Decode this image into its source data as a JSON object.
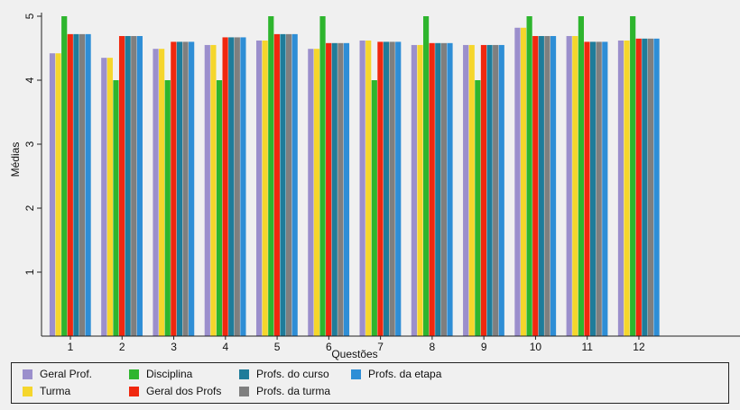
{
  "chart_data": {
    "type": "bar",
    "xlabel": "Questões",
    "ylabel": "Médias",
    "ylim": [
      0,
      5
    ],
    "yticks": [
      1,
      2,
      3,
      4,
      5
    ],
    "grid": false,
    "legend_position": "bottom",
    "categories": [
      "1",
      "2",
      "3",
      "4",
      "5",
      "6",
      "7",
      "8",
      "9",
      "10",
      "11",
      "12"
    ],
    "series": [
      {
        "name": "Geral Prof.",
        "color": "#9b8fcc",
        "values": [
          4.42,
          4.35,
          4.49,
          4.55,
          4.62,
          4.49,
          4.62,
          4.55,
          4.55,
          4.82,
          4.69,
          4.62
        ]
      },
      {
        "name": "Turma",
        "color": "#f5d62c",
        "values": [
          4.42,
          4.35,
          4.49,
          4.55,
          4.62,
          4.49,
          4.62,
          4.55,
          4.55,
          4.82,
          4.69,
          4.62
        ]
      },
      {
        "name": "Disciplina",
        "color": "#2eb52e",
        "values": [
          5.0,
          4.0,
          4.0,
          4.0,
          5.0,
          5.0,
          4.0,
          5.0,
          4.0,
          5.0,
          5.0,
          5.0
        ]
      },
      {
        "name": "Geral dos Profs",
        "color": "#f0280f",
        "values": [
          4.72,
          4.69,
          4.6,
          4.67,
          4.72,
          4.58,
          4.6,
          4.58,
          4.55,
          4.69,
          4.6,
          4.65
        ]
      },
      {
        "name": "Profs. do curso",
        "color": "#1f7c9a",
        "values": [
          4.72,
          4.69,
          4.6,
          4.67,
          4.72,
          4.58,
          4.6,
          4.58,
          4.55,
          4.69,
          4.6,
          4.65
        ]
      },
      {
        "name": "Profs. da turma",
        "color": "#7f7f7f",
        "values": [
          4.72,
          4.69,
          4.6,
          4.67,
          4.72,
          4.58,
          4.6,
          4.58,
          4.55,
          4.69,
          4.6,
          4.65
        ]
      },
      {
        "name": "Profs. da etapa",
        "color": "#2e8ed6",
        "values": [
          4.72,
          4.69,
          4.6,
          4.67,
          4.72,
          4.58,
          4.6,
          4.58,
          4.55,
          4.69,
          4.6,
          4.65
        ]
      }
    ]
  }
}
